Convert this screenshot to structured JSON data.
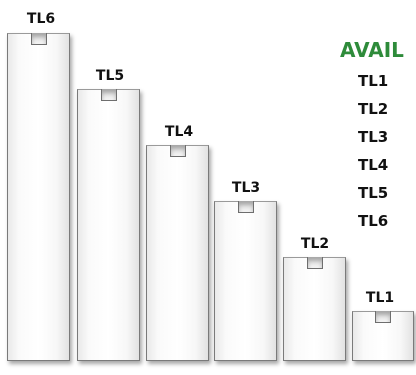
{
  "blocks": [
    {
      "label": "TL6"
    },
    {
      "label": "TL5"
    },
    {
      "label": "TL4"
    },
    {
      "label": "TL3"
    },
    {
      "label": "TL2"
    },
    {
      "label": "TL1"
    }
  ],
  "available": {
    "title": "AVAIL",
    "items": [
      "TL1",
      "TL2",
      "TL3",
      "TL4",
      "TL5",
      "TL6"
    ]
  }
}
